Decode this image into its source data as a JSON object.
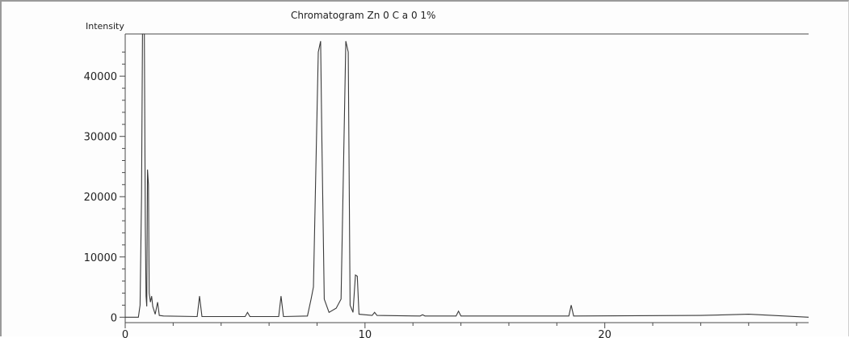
{
  "chart_data": {
    "type": "line",
    "title": "Chromatogram Zn 0 C a 0   1%",
    "xlabel": "",
    "ylabel": "Intensity",
    "xlim": [
      0,
      28.5
    ],
    "ylim": [
      -900,
      47000
    ],
    "x_ticks": [
      0,
      10,
      20
    ],
    "y_ticks": [
      0,
      10000,
      20000,
      30000,
      40000
    ],
    "grid": false,
    "series": [
      {
        "points": [
          [
            0.0,
            0
          ],
          [
            0.55,
            0
          ],
          [
            0.62,
            2000
          ],
          [
            0.68,
            20000
          ],
          [
            0.72,
            47000
          ],
          [
            0.8,
            47000
          ],
          [
            0.84,
            15000
          ],
          [
            0.87,
            3500
          ],
          [
            0.9,
            1800
          ],
          [
            0.93,
            24500
          ],
          [
            0.97,
            22000
          ],
          [
            1.0,
            4000
          ],
          [
            1.05,
            2500
          ],
          [
            1.1,
            3500
          ],
          [
            1.15,
            1800
          ],
          [
            1.25,
            500
          ],
          [
            1.35,
            2500
          ],
          [
            1.42,
            300
          ],
          [
            1.6,
            200
          ],
          [
            3.0,
            100
          ],
          [
            3.1,
            3500
          ],
          [
            3.2,
            100
          ],
          [
            5.0,
            100
          ],
          [
            5.1,
            800
          ],
          [
            5.2,
            100
          ],
          [
            6.4,
            100
          ],
          [
            6.5,
            3500
          ],
          [
            6.6,
            100
          ],
          [
            7.6,
            200
          ],
          [
            7.75,
            3000
          ],
          [
            7.85,
            5000
          ],
          [
            8.05,
            44000
          ],
          [
            8.15,
            45800
          ],
          [
            8.2,
            30000
          ],
          [
            8.3,
            3000
          ],
          [
            8.5,
            800
          ],
          [
            8.8,
            1500
          ],
          [
            9.0,
            3000
          ],
          [
            9.2,
            45800
          ],
          [
            9.3,
            44000
          ],
          [
            9.38,
            2000
          ],
          [
            9.5,
            800
          ],
          [
            9.6,
            7000
          ],
          [
            9.68,
            6800
          ],
          [
            9.75,
            500
          ],
          [
            10.3,
            300
          ],
          [
            10.4,
            800
          ],
          [
            10.5,
            300
          ],
          [
            12.3,
            200
          ],
          [
            12.4,
            400
          ],
          [
            12.5,
            200
          ],
          [
            13.8,
            200
          ],
          [
            13.9,
            1000
          ],
          [
            14.0,
            200
          ],
          [
            18.5,
            200
          ],
          [
            18.6,
            2000
          ],
          [
            18.7,
            200
          ],
          [
            24.0,
            300
          ],
          [
            26.0,
            500
          ],
          [
            27.0,
            300
          ],
          [
            28.5,
            0
          ]
        ]
      }
    ]
  }
}
